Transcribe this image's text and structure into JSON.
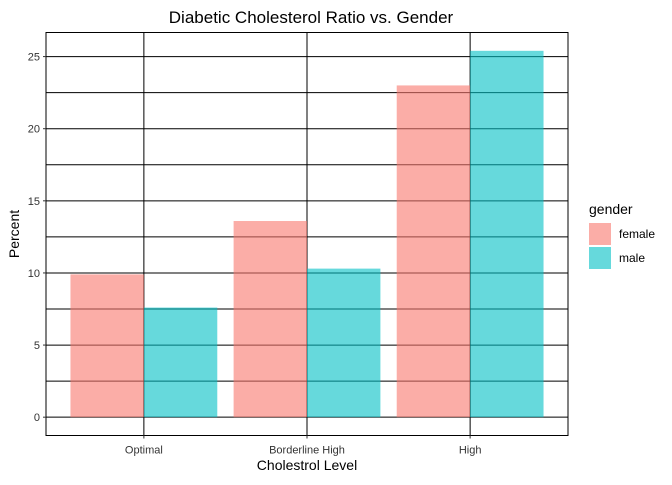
{
  "chart_data": {
    "type": "bar",
    "title": "Diabetic Cholesterol Ratio vs. Gender",
    "xlabel": "Cholestrol Level",
    "ylabel": "Percent",
    "categories": [
      "Optimal",
      "Borderline High",
      "High"
    ],
    "series": [
      {
        "name": "female",
        "values": [
          9.9,
          13.6,
          23.0
        ],
        "color": "#F8766D"
      },
      {
        "name": "male",
        "values": [
          7.6,
          10.3,
          25.4
        ],
        "color": "#00BFC4"
      }
    ],
    "ylim": [
      -1.27,
      26.67
    ],
    "yticks": [
      0,
      5,
      10,
      15,
      20,
      25
    ],
    "grid": true,
    "legend": {
      "title": "gender",
      "placement": "right"
    },
    "bar_opacity": 0.6
  }
}
